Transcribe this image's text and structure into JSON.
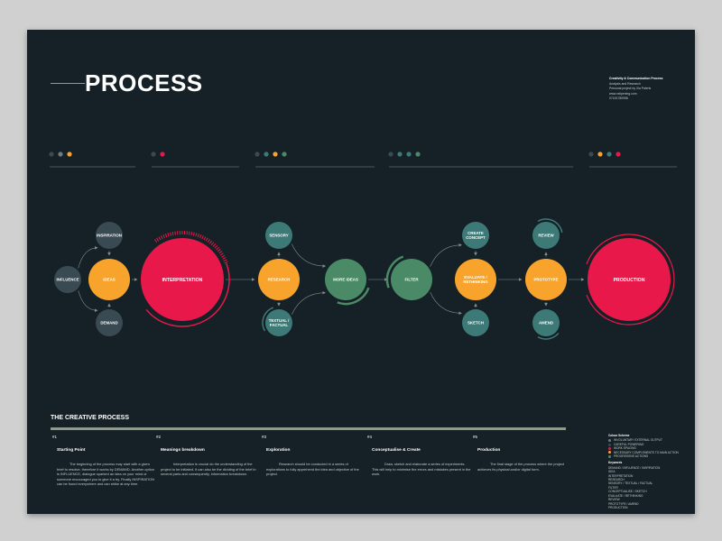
{
  "header": {
    "title": "PROCESS"
  },
  "info": {
    "heading": "Creativity & Communication Process",
    "lines": [
      "Analysis and Research",
      "Personal project by Xia Paleris",
      "www.xxlipening.com",
      "07151780958"
    ]
  },
  "colors": {
    "background": "#152126",
    "red": "#e8194a",
    "orange": "#f8a42c",
    "teal": "#3d7a77",
    "green": "#4a8a66",
    "slate": "#3a4a52",
    "grey": "#6f7b80",
    "line": "#7f8e8d"
  },
  "dot_groups": [
    [
      "slate",
      "grey",
      "orange"
    ],
    [
      "slate",
      "red"
    ],
    [
      "slate",
      "teal",
      "orange",
      "green"
    ],
    [
      "slate",
      "teal",
      "teal",
      "green"
    ],
    [
      "slate",
      "orange",
      "teal",
      "red"
    ]
  ],
  "nodes": [
    {
      "id": "influence",
      "label": "INFLUENCE",
      "color": "slate",
      "size": "small"
    },
    {
      "id": "inspiration",
      "label": "INSPIRATION",
      "color": "slate",
      "size": "small"
    },
    {
      "id": "ideas",
      "label": "IDEAS",
      "color": "orange",
      "size": "medium"
    },
    {
      "id": "demand",
      "label": "DEMAND",
      "color": "slate",
      "size": "small"
    },
    {
      "id": "interpretation",
      "label": "INTERPRETATION",
      "color": "red",
      "size": "large"
    },
    {
      "id": "sensory",
      "label": "SENSORY",
      "color": "teal",
      "size": "small"
    },
    {
      "id": "research",
      "label": "RESEARCH",
      "color": "orange",
      "size": "medium"
    },
    {
      "id": "textual",
      "label": "TEXTUAL / FACTUAL",
      "color": "teal",
      "size": "small"
    },
    {
      "id": "more_ideas",
      "label": "MORE IDEAS",
      "color": "green",
      "size": "medium"
    },
    {
      "id": "filter",
      "label": "FILTER",
      "color": "green",
      "size": "medium"
    },
    {
      "id": "create_concept",
      "label": "CREATE CONCEPT",
      "color": "teal",
      "size": "small"
    },
    {
      "id": "evaluate",
      "label": "EVALUATE / RETHINKING",
      "color": "orange",
      "size": "medium"
    },
    {
      "id": "sketch",
      "label": "SKETCH",
      "color": "teal",
      "size": "small"
    },
    {
      "id": "review",
      "label": "REVIEW",
      "color": "teal",
      "size": "small"
    },
    {
      "id": "prototype",
      "label": "PROTOTYPE",
      "color": "orange",
      "size": "medium"
    },
    {
      "id": "amend",
      "label": "AMEND",
      "color": "teal",
      "size": "small"
    },
    {
      "id": "production",
      "label": "PRODUCTION",
      "color": "red",
      "size": "large"
    }
  ],
  "edges": [
    [
      "influence",
      "inspiration"
    ],
    [
      "influence",
      "demand"
    ],
    [
      "inspiration",
      "ideas"
    ],
    [
      "demand",
      "ideas"
    ],
    [
      "ideas",
      "interpretation"
    ],
    [
      "interpretation",
      "research"
    ],
    [
      "research",
      "sensory"
    ],
    [
      "research",
      "textual"
    ],
    [
      "sensory",
      "more_ideas"
    ],
    [
      "textual",
      "more_ideas"
    ],
    [
      "more_ideas",
      "filter"
    ],
    [
      "filter",
      "create_concept"
    ],
    [
      "filter",
      "sketch"
    ],
    [
      "create_concept",
      "evaluate"
    ],
    [
      "sketch",
      "evaluate"
    ],
    [
      "evaluate",
      "prototype"
    ],
    [
      "prototype",
      "review"
    ],
    [
      "prototype",
      "amend"
    ],
    [
      "prototype",
      "production"
    ]
  ],
  "creative_process": {
    "title": "THE CREATIVE PROCESS",
    "steps": [
      {
        "num": "#1",
        "heading": "Starting Point",
        "text": "The beginning of the process may start with a given brief to resolve, therefore it works by DEMAND. Another option is INFLUENCE, dialogue sparked an idea on your mind or someone encouraged you to give it a try. Finally INSPIRATION can be found everywhere and can strike at any time."
      },
      {
        "num": "#2",
        "heading": "Meanings breakdown",
        "text": "Interpretation is crucial do the understanding of the project to be initiated. It can also be the dividing of the brief in several parts and consequently, information breakdown."
      },
      {
        "num": "#3",
        "heading": "Exploration",
        "text": "Research should be conducted in a series of explorations to fully apprehend the idea and objective of the project."
      },
      {
        "num": "#4",
        "heading": "Conceptualise & Create",
        "text": "Draw, sketch and elaborate a series of experiments. This will help to minimise the errors and mistakes present in the work."
      },
      {
        "num": "#5",
        "heading": "Production",
        "text": "The final stage of the process where the project achieves its physical and/or digital form."
      }
    ]
  },
  "colour_scheme": {
    "title": "Colour Scheme",
    "items": [
      {
        "color": "grey",
        "label": "INVOLUNTARY EXTERNAL OUTPUT"
      },
      {
        "color": "slate",
        "label": "CAREFUL POWERING"
      },
      {
        "color": "red",
        "label": "WORK SPACING"
      },
      {
        "color": "orange",
        "label": "NECESSARY COMPLEMENTS TO MAIN ACTION"
      },
      {
        "color": "green",
        "label": "PROGRESSIVE ACTIONS"
      }
    ]
  },
  "keywords": {
    "title": "Keywords",
    "items": [
      "DEMAND / INFLUENCE / INSPIRATION",
      "IDEA",
      "INTERPRETATION",
      "RESEARCH",
      "SENSORY / TEXTUAL / FACTUAL",
      "FILTER",
      "CONCEPTUALISE / SKETCH",
      "EVALUATE / RETHINKING",
      "REVIEW",
      "PROTOTYPE / AMEND",
      "PRODUCTION"
    ]
  }
}
